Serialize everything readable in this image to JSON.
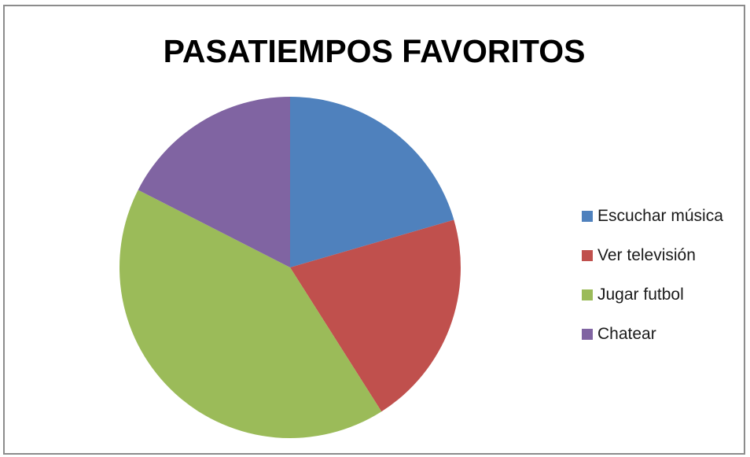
{
  "chart_data": {
    "type": "pie",
    "title": "PASATIEMPOS FAVORITOS",
    "categories": [
      "Escuchar música",
      "Ver televisión",
      "Jugar futbol",
      "Chatear"
    ],
    "values": [
      20.5,
      20.5,
      41.5,
      17.5
    ],
    "colors": [
      "#4f81bd",
      "#c0504d",
      "#9bbb59",
      "#8064a2"
    ],
    "start_angle": "12 o'clock",
    "direction": "clockwise",
    "legend_position": "right"
  }
}
